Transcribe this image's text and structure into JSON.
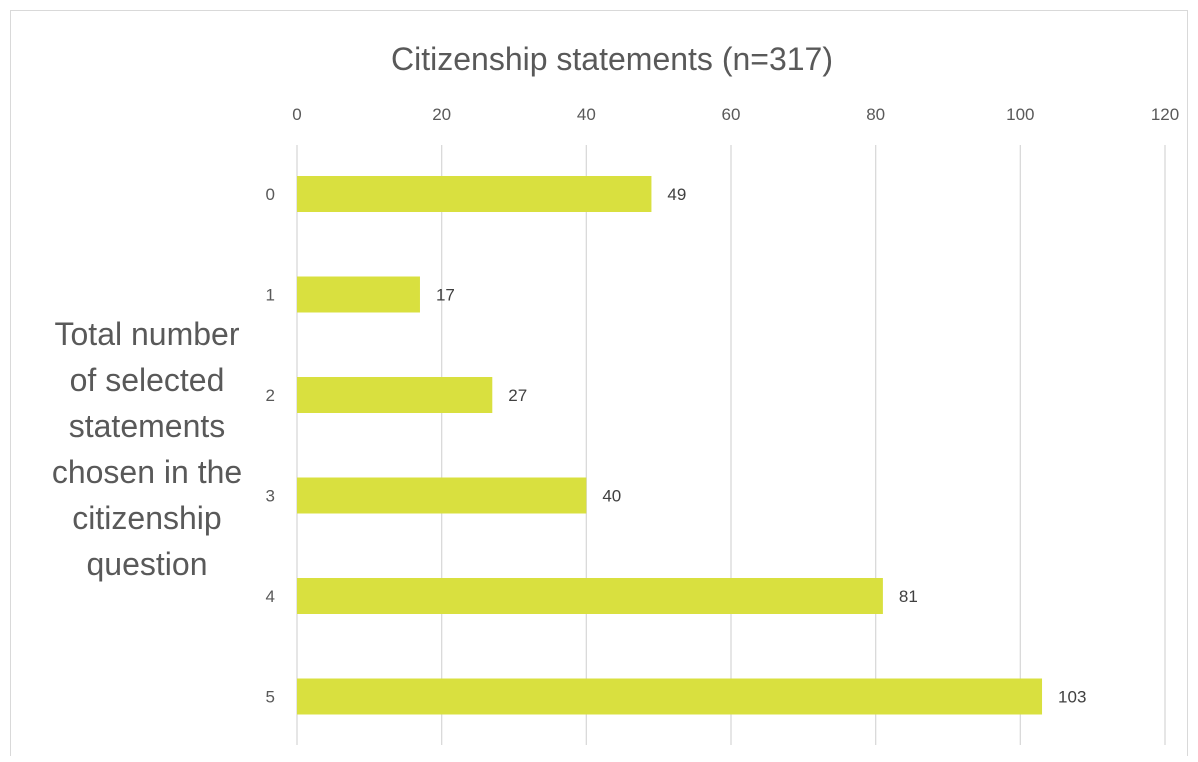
{
  "chart_data": {
    "type": "bar",
    "orientation": "horizontal",
    "title": "Citizenship statements (n=317)",
    "ylabel_lines": [
      "Total number",
      "of selected",
      "statements",
      "chosen in the",
      "citizenship",
      "question"
    ],
    "categories": [
      "0",
      "1",
      "2",
      "3",
      "4",
      "5"
    ],
    "values": [
      49,
      17,
      27,
      40,
      81,
      103
    ],
    "x_ticks": [
      "0",
      "20",
      "40",
      "60",
      "80",
      "100",
      "120"
    ],
    "xlim": [
      0,
      120
    ],
    "x_axis_position": "top",
    "grid": true,
    "data_labels": true,
    "bar_color": "#d9e03f",
    "grid_color": "#d9d9d9",
    "text_color": "#595959"
  }
}
